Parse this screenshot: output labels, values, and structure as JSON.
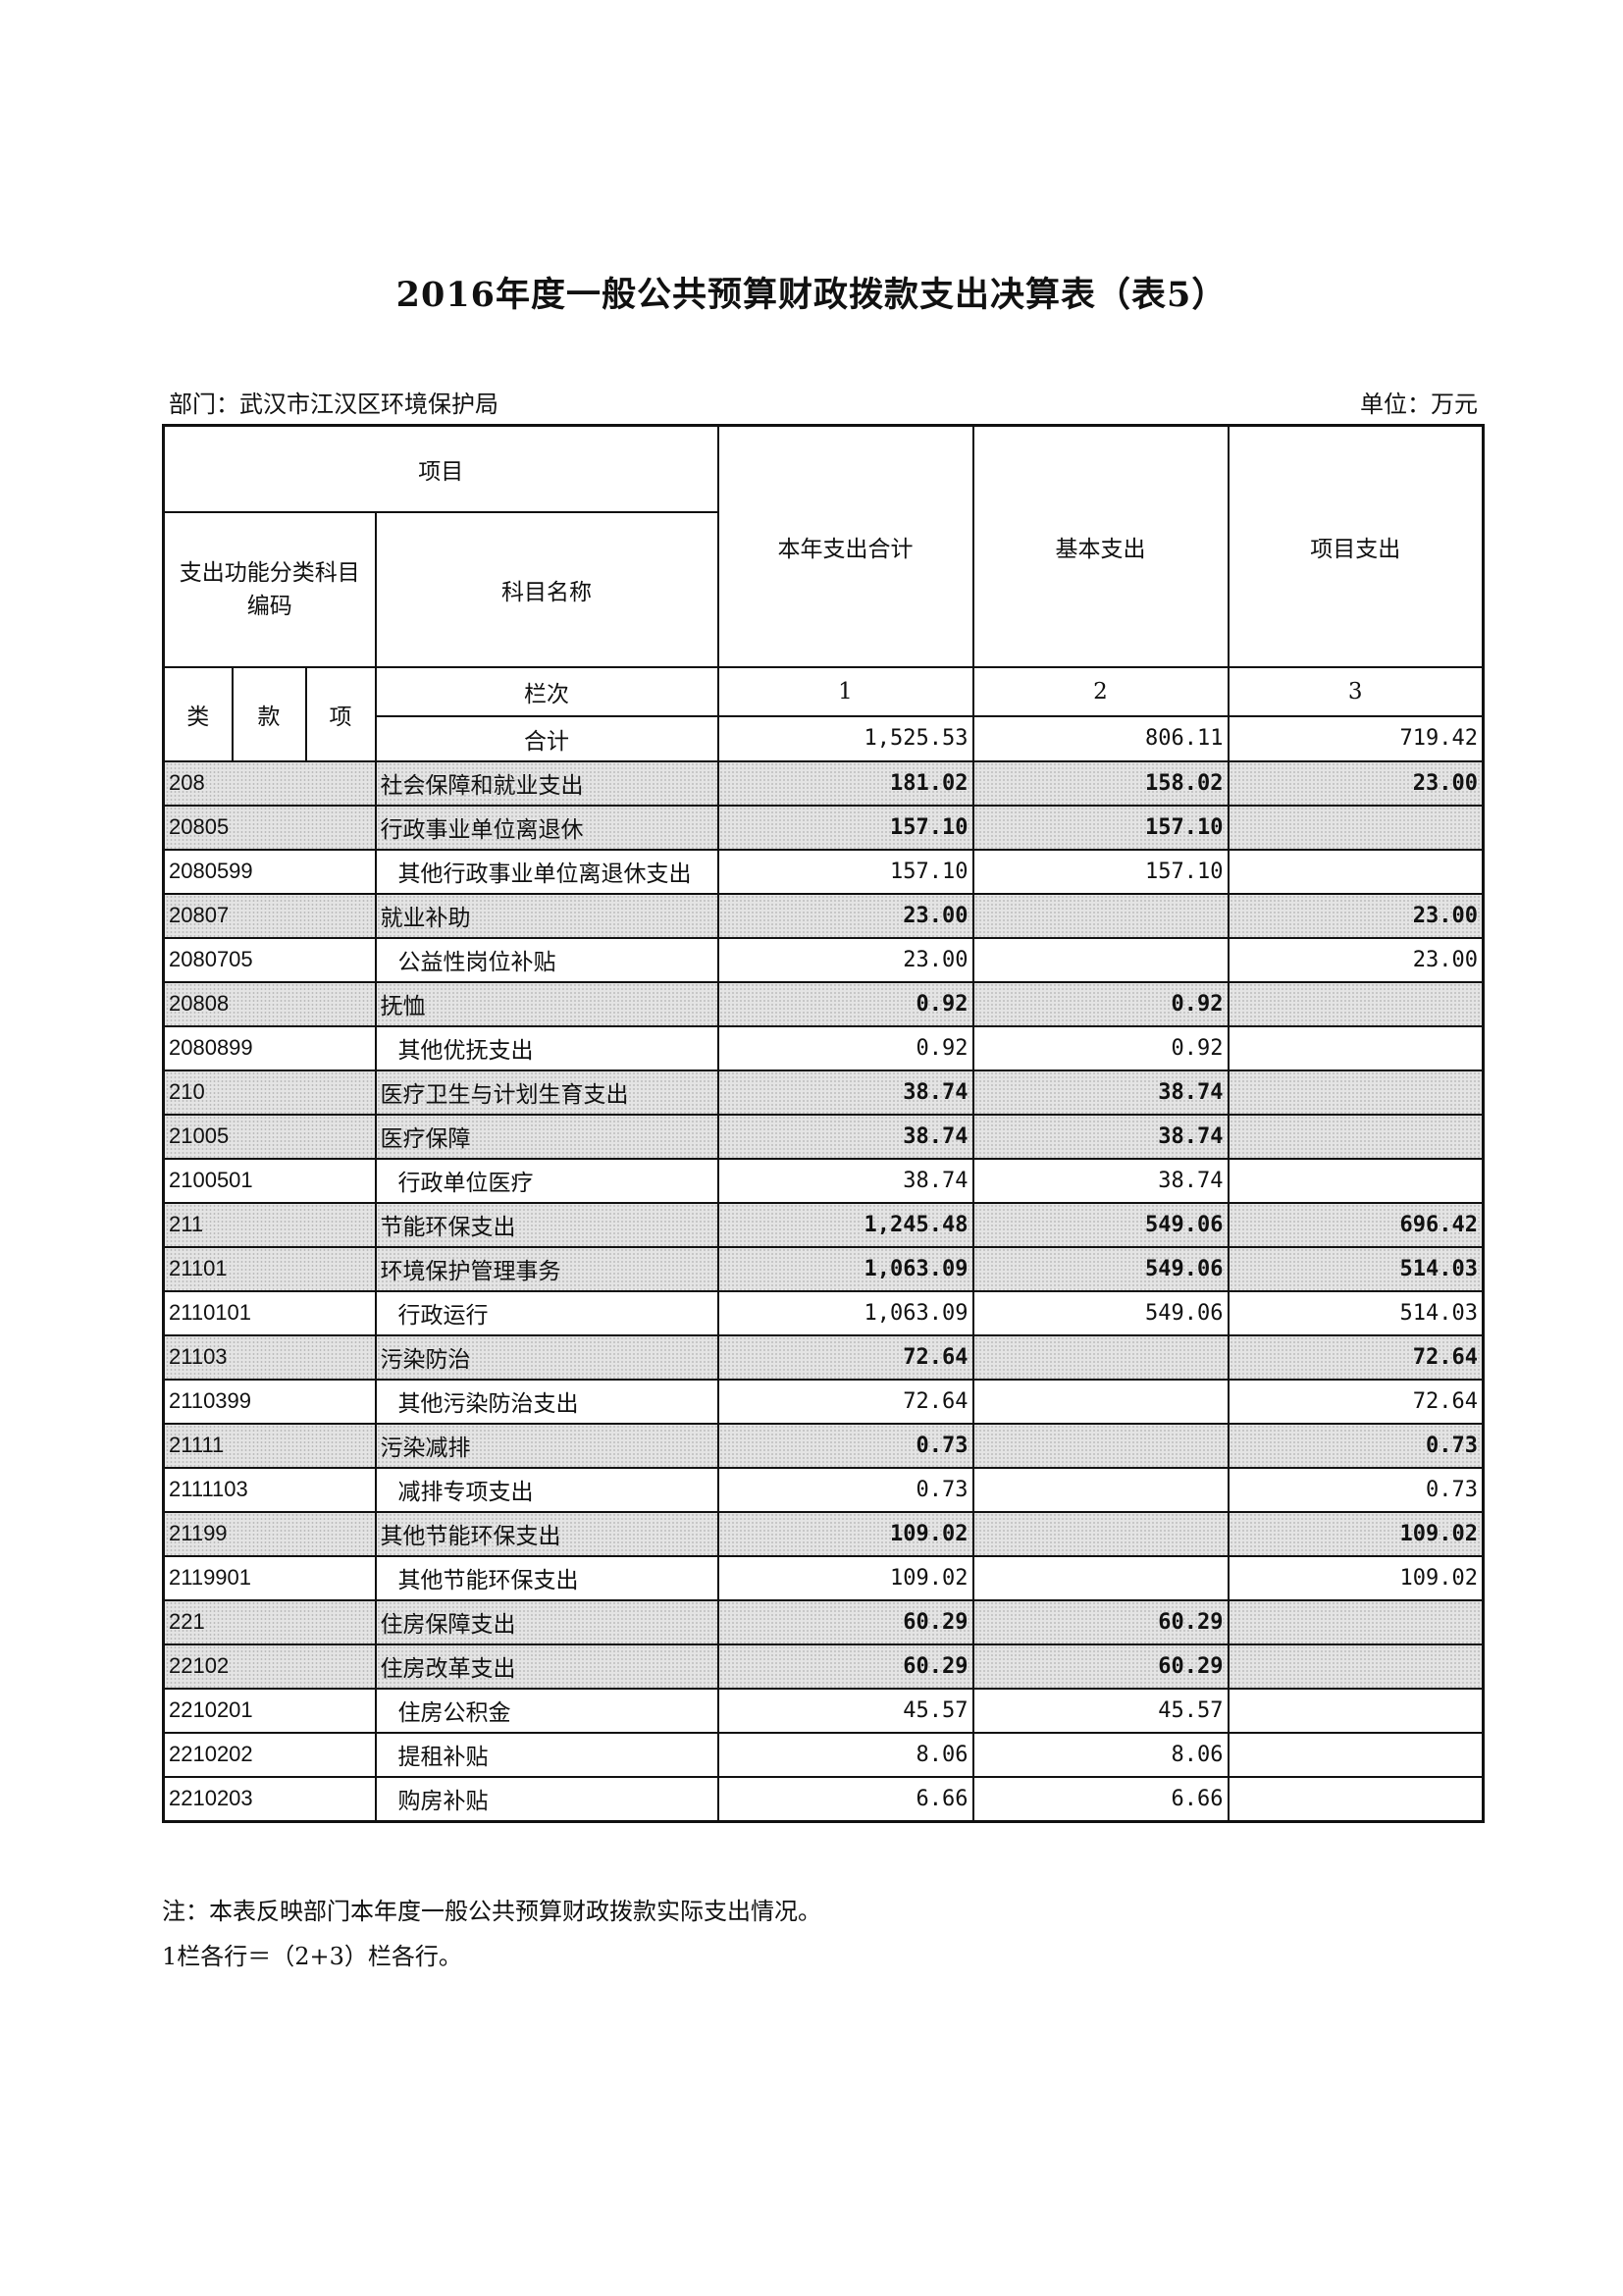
{
  "title": "2016年度一般公共预算财政拨款支出决算表（表5）",
  "department": "部门：武汉市江汉区环境保护局",
  "unit": "单位：万元",
  "header": {
    "item": "项目",
    "code_col": "支出功能分类科目编码",
    "name_col": "科目名称",
    "total_col": "本年支出合计",
    "basic_col": "基本支出",
    "project_col": "项目支出",
    "lei": "类",
    "kuan": "款",
    "xiang": "项",
    "column_no": "栏次",
    "no1": "1",
    "no2": "2",
    "no3": "3",
    "sum_label": "合计",
    "sum_total": "1,525.53",
    "sum_basic": "806.11",
    "sum_project": "719.42"
  },
  "rows": [
    {
      "code": "208",
      "name": "社会保障和就业支出",
      "total": "181.02",
      "basic": "158.02",
      "project": "23.00",
      "level": "category"
    },
    {
      "code": "20805",
      "name": "行政事业单位离退休",
      "total": "157.10",
      "basic": "157.10",
      "project": "",
      "level": "category"
    },
    {
      "code": "2080599",
      "name": "其他行政事业单位离退休支出",
      "total": "157.10",
      "basic": "157.10",
      "project": "",
      "level": "item"
    },
    {
      "code": "20807",
      "name": "就业补助",
      "total": "23.00",
      "basic": "",
      "project": "23.00",
      "level": "category"
    },
    {
      "code": "2080705",
      "name": "公益性岗位补贴",
      "total": "23.00",
      "basic": "",
      "project": "23.00",
      "level": "item"
    },
    {
      "code": "20808",
      "name": "抚恤",
      "total": "0.92",
      "basic": "0.92",
      "project": "",
      "level": "category"
    },
    {
      "code": "2080899",
      "name": "其他优抚支出",
      "total": "0.92",
      "basic": "0.92",
      "project": "",
      "level": "item"
    },
    {
      "code": "210",
      "name": "医疗卫生与计划生育支出",
      "total": "38.74",
      "basic": "38.74",
      "project": "",
      "level": "category"
    },
    {
      "code": "21005",
      "name": "医疗保障",
      "total": "38.74",
      "basic": "38.74",
      "project": "",
      "level": "category"
    },
    {
      "code": "2100501",
      "name": "行政单位医疗",
      "total": "38.74",
      "basic": "38.74",
      "project": "",
      "level": "item"
    },
    {
      "code": "211",
      "name": "节能环保支出",
      "total": "1,245.48",
      "basic": "549.06",
      "project": "696.42",
      "level": "category"
    },
    {
      "code": "21101",
      "name": "环境保护管理事务",
      "total": "1,063.09",
      "basic": "549.06",
      "project": "514.03",
      "level": "category"
    },
    {
      "code": "2110101",
      "name": "行政运行",
      "total": "1,063.09",
      "basic": "549.06",
      "project": "514.03",
      "level": "item"
    },
    {
      "code": "21103",
      "name": "污染防治",
      "total": "72.64",
      "basic": "",
      "project": "72.64",
      "level": "category"
    },
    {
      "code": "2110399",
      "name": "其他污染防治支出",
      "total": "72.64",
      "basic": "",
      "project": "72.64",
      "level": "item"
    },
    {
      "code": "21111",
      "name": "污染减排",
      "total": "0.73",
      "basic": "",
      "project": "0.73",
      "level": "category"
    },
    {
      "code": "2111103",
      "name": "减排专项支出",
      "total": "0.73",
      "basic": "",
      "project": "0.73",
      "level": "item"
    },
    {
      "code": "21199",
      "name": "其他节能环保支出",
      "total": "109.02",
      "basic": "",
      "project": "109.02",
      "level": "category"
    },
    {
      "code": "2119901",
      "name": "其他节能环保支出",
      "total": "109.02",
      "basic": "",
      "project": "109.02",
      "level": "item"
    },
    {
      "code": "221",
      "name": "住房保障支出",
      "total": "60.29",
      "basic": "60.29",
      "project": "",
      "level": "category"
    },
    {
      "code": "22102",
      "name": "住房改革支出",
      "total": "60.29",
      "basic": "60.29",
      "project": "",
      "level": "category"
    },
    {
      "code": "2210201",
      "name": "住房公积金",
      "total": "45.57",
      "basic": "45.57",
      "project": "",
      "level": "item"
    },
    {
      "code": "2210202",
      "name": "提租补贴",
      "total": "8.06",
      "basic": "8.06",
      "project": "",
      "level": "item"
    },
    {
      "code": "2210203",
      "name": "购房补贴",
      "total": "6.66",
      "basic": "6.66",
      "project": "",
      "level": "item"
    }
  ],
  "notes": [
    "注：本表反映部门本年度一般公共预算财政拨款实际支出情况。",
    "1栏各行＝（2+3）栏各行。"
  ]
}
